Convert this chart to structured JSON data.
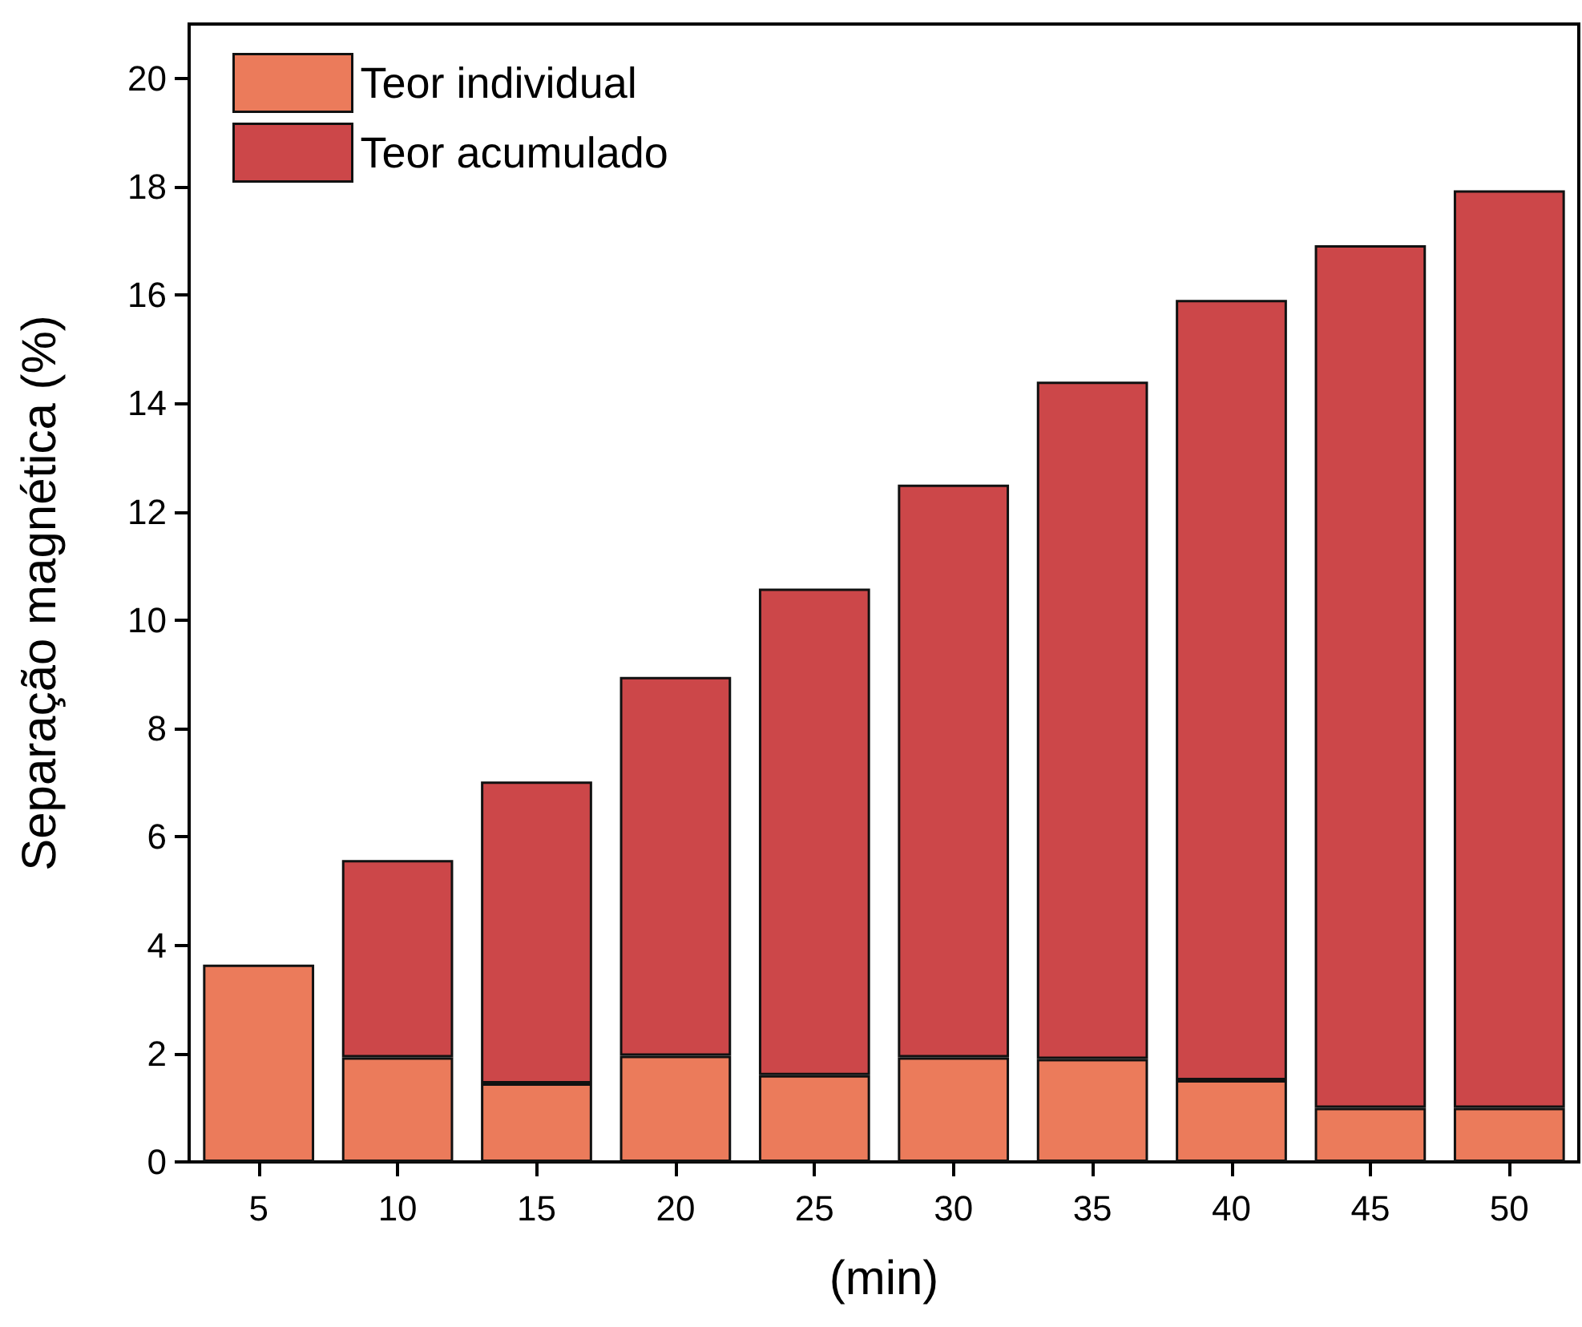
{
  "chart_data": {
    "type": "bar",
    "stacked": true,
    "xlabel": "(min)",
    "ylabel": "Separação magnética (%)",
    "categories": [
      "5",
      "10",
      "15",
      "20",
      "25",
      "30",
      "35",
      "40",
      "45",
      "50"
    ],
    "series": [
      {
        "name": "Teor individual",
        "color": "#eb7b5b",
        "values": [
          3.64,
          1.93,
          1.45,
          1.96,
          1.6,
          1.93,
          1.9,
          1.51,
          1.0,
          1.0
        ]
      },
      {
        "name": "Teor acumulado",
        "color": "#cc4749",
        "values": [
          null,
          3.64,
          5.57,
          6.99,
          8.98,
          10.57,
          12.5,
          14.4,
          15.92,
          16.93
        ]
      }
    ],
    "ylim": [
      0,
      21
    ],
    "yticks": [
      0,
      2,
      4,
      6,
      8,
      10,
      12,
      14,
      16,
      18,
      20
    ],
    "grid": false,
    "legend": "top left"
  }
}
